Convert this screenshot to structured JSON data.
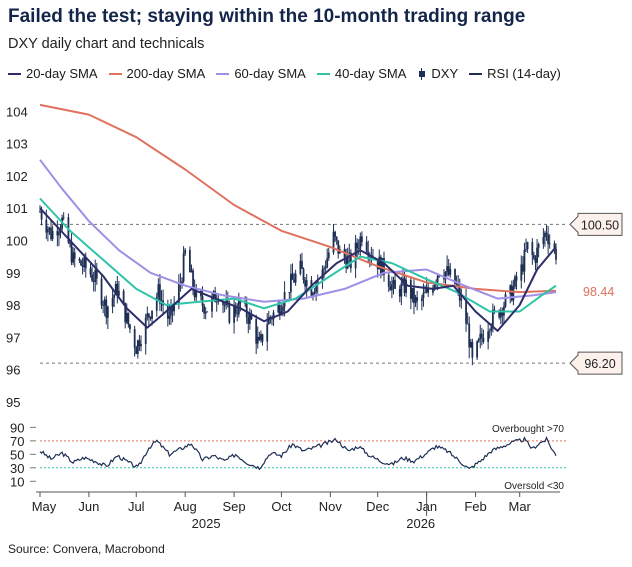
{
  "title": "Failed the test; staying within the 10-month trading range",
  "subtitle": "DXY daily chart and technicals",
  "source": "Source: Convera, Macrobond",
  "colors": {
    "sma20": "#2d2d6b",
    "sma200": "#e0715e",
    "sma60": "#9f8fe6",
    "sma40": "#2fc4a8",
    "dxy": "#1e2f55",
    "rsi": "#1e2f55",
    "overbought": "#e0715e",
    "oversold": "#2fc4a8"
  },
  "legend": [
    {
      "label": "20-day SMA",
      "key": "sma20",
      "kind": "line"
    },
    {
      "label": "200-day SMA",
      "key": "sma200",
      "kind": "line"
    },
    {
      "label": "60-day SMA",
      "key": "sma60",
      "kind": "line"
    },
    {
      "label": "40-day SMA",
      "key": "sma40",
      "kind": "line"
    },
    {
      "label": "DXY",
      "key": "dxy",
      "kind": "candle"
    },
    {
      "label": "RSI (14-day)",
      "key": "rsi",
      "kind": "line"
    }
  ],
  "chart_data": {
    "type": "line",
    "x_labels": [
      "May",
      "Jun",
      "Jul",
      "Aug",
      "Sep",
      "Oct",
      "Nov",
      "Dec",
      "Jan",
      "Feb",
      "Mar"
    ],
    "year_labels": [
      "2025",
      "2026"
    ],
    "x_range": [
      "2025-05-01",
      "2026-03-24"
    ],
    "price_panel": {
      "ylim": [
        94.5,
        104.6
      ],
      "yticks": [
        95,
        96,
        97,
        98,
        99,
        100,
        101,
        102,
        103,
        104
      ],
      "dxy_close": [
        {
          "x": "2025-05-01",
          "y": 100.9
        },
        {
          "x": "2025-05-08",
          "y": 100.2
        },
        {
          "x": "2025-05-15",
          "y": 100.6
        },
        {
          "x": "2025-05-22",
          "y": 99.4
        },
        {
          "x": "2025-05-29",
          "y": 99.2
        },
        {
          "x": "2025-06-05",
          "y": 98.8
        },
        {
          "x": "2025-06-12",
          "y": 97.9
        },
        {
          "x": "2025-06-19",
          "y": 98.5
        },
        {
          "x": "2025-06-26",
          "y": 97.4
        },
        {
          "x": "2025-07-01",
          "y": 96.7
        },
        {
          "x": "2025-07-08",
          "y": 97.6
        },
        {
          "x": "2025-07-15",
          "y": 98.4
        },
        {
          "x": "2025-07-22",
          "y": 97.5
        },
        {
          "x": "2025-07-29",
          "y": 98.7
        },
        {
          "x": "2025-08-01",
          "y": 99.6
        },
        {
          "x": "2025-08-08",
          "y": 98.2
        },
        {
          "x": "2025-08-15",
          "y": 97.9
        },
        {
          "x": "2025-08-22",
          "y": 98.4
        },
        {
          "x": "2025-08-29",
          "y": 97.7
        },
        {
          "x": "2025-09-05",
          "y": 98.0
        },
        {
          "x": "2025-09-12",
          "y": 97.5
        },
        {
          "x": "2025-09-17",
          "y": 96.7
        },
        {
          "x": "2025-09-22",
          "y": 97.5
        },
        {
          "x": "2025-09-29",
          "y": 97.9
        },
        {
          "x": "2025-10-06",
          "y": 98.6
        },
        {
          "x": "2025-10-13",
          "y": 99.1
        },
        {
          "x": "2025-10-20",
          "y": 98.5
        },
        {
          "x": "2025-10-27",
          "y": 99.0
        },
        {
          "x": "2025-11-03",
          "y": 100.1
        },
        {
          "x": "2025-11-07",
          "y": 99.6
        },
        {
          "x": "2025-11-14",
          "y": 99.3
        },
        {
          "x": "2025-11-21",
          "y": 100.2
        },
        {
          "x": "2025-11-28",
          "y": 99.5
        },
        {
          "x": "2025-12-05",
          "y": 99.1
        },
        {
          "x": "2025-12-12",
          "y": 98.4
        },
        {
          "x": "2025-12-19",
          "y": 98.6
        },
        {
          "x": "2025-12-26",
          "y": 98.0
        },
        {
          "x": "2026-01-02",
          "y": 98.4
        },
        {
          "x": "2026-01-09",
          "y": 99.1
        },
        {
          "x": "2026-01-14",
          "y": 99.0
        },
        {
          "x": "2026-01-20",
          "y": 98.6
        },
        {
          "x": "2026-01-27",
          "y": 97.3
        },
        {
          "x": "2026-01-30",
          "y": 96.2
        },
        {
          "x": "2026-02-04",
          "y": 96.9
        },
        {
          "x": "2026-02-10",
          "y": 97.5
        },
        {
          "x": "2026-02-17",
          "y": 97.9
        },
        {
          "x": "2026-02-24",
          "y": 98.4
        },
        {
          "x": "2026-03-02",
          "y": 99.1
        },
        {
          "x": "2026-03-06",
          "y": 99.8
        },
        {
          "x": "2026-03-10",
          "y": 99.4
        },
        {
          "x": "2026-03-14",
          "y": 99.9
        },
        {
          "x": "2026-03-18",
          "y": 100.3
        },
        {
          "x": "2026-03-21",
          "y": 99.8
        },
        {
          "x": "2026-03-24",
          "y": 99.6
        }
      ],
      "sma20": [
        {
          "x": "2025-05-01",
          "y": 101.0
        },
        {
          "x": "2025-05-20",
          "y": 100.0
        },
        {
          "x": "2025-06-10",
          "y": 98.9
        },
        {
          "x": "2025-06-25",
          "y": 97.9
        },
        {
          "x": "2025-07-08",
          "y": 97.3
        },
        {
          "x": "2025-07-20",
          "y": 97.8
        },
        {
          "x": "2025-08-05",
          "y": 98.5
        },
        {
          "x": "2025-08-20",
          "y": 98.2
        },
        {
          "x": "2025-09-05",
          "y": 97.9
        },
        {
          "x": "2025-09-20",
          "y": 97.5
        },
        {
          "x": "2025-10-05",
          "y": 97.8
        },
        {
          "x": "2025-10-20",
          "y": 98.6
        },
        {
          "x": "2025-11-05",
          "y": 99.3
        },
        {
          "x": "2025-11-20",
          "y": 99.7
        },
        {
          "x": "2025-12-05",
          "y": 99.3
        },
        {
          "x": "2025-12-20",
          "y": 98.6
        },
        {
          "x": "2026-01-05",
          "y": 98.5
        },
        {
          "x": "2026-01-18",
          "y": 98.6
        },
        {
          "x": "2026-02-01",
          "y": 97.8
        },
        {
          "x": "2026-02-15",
          "y": 97.2
        },
        {
          "x": "2026-03-01",
          "y": 98.0
        },
        {
          "x": "2026-03-12",
          "y": 99.1
        },
        {
          "x": "2026-03-24",
          "y": 99.8
        }
      ],
      "sma40": [
        {
          "x": "2025-05-01",
          "y": 101.3
        },
        {
          "x": "2025-05-20",
          "y": 100.3
        },
        {
          "x": "2025-06-10",
          "y": 99.4
        },
        {
          "x": "2025-07-01",
          "y": 98.5
        },
        {
          "x": "2025-07-20",
          "y": 98.0
        },
        {
          "x": "2025-08-10",
          "y": 98.1
        },
        {
          "x": "2025-09-01",
          "y": 98.2
        },
        {
          "x": "2025-09-20",
          "y": 97.9
        },
        {
          "x": "2025-10-10",
          "y": 98.2
        },
        {
          "x": "2025-11-01",
          "y": 98.9
        },
        {
          "x": "2025-11-20",
          "y": 99.5
        },
        {
          "x": "2025-12-10",
          "y": 99.3
        },
        {
          "x": "2026-01-01",
          "y": 98.8
        },
        {
          "x": "2026-01-20",
          "y": 98.4
        },
        {
          "x": "2026-02-10",
          "y": 97.8
        },
        {
          "x": "2026-03-01",
          "y": 97.8
        },
        {
          "x": "2026-03-15",
          "y": 98.3
        },
        {
          "x": "2026-03-24",
          "y": 98.6
        }
      ],
      "sma60": [
        {
          "x": "2025-05-01",
          "y": 102.5
        },
        {
          "x": "2025-05-15",
          "y": 101.6
        },
        {
          "x": "2025-06-01",
          "y": 100.6
        },
        {
          "x": "2025-06-20",
          "y": 99.7
        },
        {
          "x": "2025-07-10",
          "y": 99.0
        },
        {
          "x": "2025-08-01",
          "y": 98.6
        },
        {
          "x": "2025-08-25",
          "y": 98.3
        },
        {
          "x": "2025-09-20",
          "y": 98.1
        },
        {
          "x": "2025-10-15",
          "y": 98.2
        },
        {
          "x": "2025-11-10",
          "y": 98.5
        },
        {
          "x": "2025-12-05",
          "y": 99.0
        },
        {
          "x": "2026-01-01",
          "y": 99.1
        },
        {
          "x": "2026-01-25",
          "y": 98.6
        },
        {
          "x": "2026-02-15",
          "y": 98.2
        },
        {
          "x": "2026-03-10",
          "y": 98.3
        },
        {
          "x": "2026-03-24",
          "y": 98.4
        }
      ],
      "sma200": [
        {
          "x": "2025-05-01",
          "y": 104.2
        },
        {
          "x": "2025-06-01",
          "y": 103.9
        },
        {
          "x": "2025-07-01",
          "y": 103.2
        },
        {
          "x": "2025-08-01",
          "y": 102.2
        },
        {
          "x": "2025-09-01",
          "y": 101.1
        },
        {
          "x": "2025-10-01",
          "y": 100.3
        },
        {
          "x": "2025-11-01",
          "y": 99.8
        },
        {
          "x": "2025-12-01",
          "y": 99.2
        },
        {
          "x": "2026-01-01",
          "y": 98.7
        },
        {
          "x": "2026-02-01",
          "y": 98.5
        },
        {
          "x": "2026-03-01",
          "y": 98.4
        },
        {
          "x": "2026-03-24",
          "y": 98.44
        }
      ],
      "levels": [
        {
          "label": "100.50",
          "value": 100.5
        },
        {
          "label": "96.20",
          "value": 96.2
        }
      ],
      "last_value_label": {
        "label": "98.44",
        "value": 98.44
      }
    },
    "rsi_panel": {
      "ylim": [
        0,
        95
      ],
      "yticks": [
        10,
        30,
        50,
        70,
        90
      ],
      "overbought": {
        "label": "Overbought >70",
        "value": 70
      },
      "oversold": {
        "label": "Oversold <30",
        "value": 30
      },
      "rsi": [
        {
          "x": "2025-05-01",
          "y": 55
        },
        {
          "x": "2025-05-08",
          "y": 43
        },
        {
          "x": "2025-05-15",
          "y": 52
        },
        {
          "x": "2025-05-22",
          "y": 38
        },
        {
          "x": "2025-05-29",
          "y": 45
        },
        {
          "x": "2025-06-05",
          "y": 40
        },
        {
          "x": "2025-06-12",
          "y": 32
        },
        {
          "x": "2025-06-19",
          "y": 48
        },
        {
          "x": "2025-06-26",
          "y": 38
        },
        {
          "x": "2025-07-02",
          "y": 30
        },
        {
          "x": "2025-07-09",
          "y": 60
        },
        {
          "x": "2025-07-14",
          "y": 70
        },
        {
          "x": "2025-07-22",
          "y": 50
        },
        {
          "x": "2025-07-29",
          "y": 58
        },
        {
          "x": "2025-08-05",
          "y": 66
        },
        {
          "x": "2025-08-12",
          "y": 42
        },
        {
          "x": "2025-08-19",
          "y": 48
        },
        {
          "x": "2025-08-26",
          "y": 40
        },
        {
          "x": "2025-09-02",
          "y": 50
        },
        {
          "x": "2025-09-09",
          "y": 38
        },
        {
          "x": "2025-09-17",
          "y": 30
        },
        {
          "x": "2025-09-24",
          "y": 52
        },
        {
          "x": "2025-10-01",
          "y": 48
        },
        {
          "x": "2025-10-08",
          "y": 65
        },
        {
          "x": "2025-10-15",
          "y": 55
        },
        {
          "x": "2025-10-22",
          "y": 60
        },
        {
          "x": "2025-10-29",
          "y": 66
        },
        {
          "x": "2025-11-05",
          "y": 72
        },
        {
          "x": "2025-11-12",
          "y": 55
        },
        {
          "x": "2025-11-19",
          "y": 62
        },
        {
          "x": "2025-11-26",
          "y": 48
        },
        {
          "x": "2025-12-03",
          "y": 40
        },
        {
          "x": "2025-12-10",
          "y": 35
        },
        {
          "x": "2025-12-17",
          "y": 45
        },
        {
          "x": "2025-12-24",
          "y": 40
        },
        {
          "x": "2025-12-31",
          "y": 50
        },
        {
          "x": "2026-01-07",
          "y": 62
        },
        {
          "x": "2026-01-14",
          "y": 55
        },
        {
          "x": "2026-01-21",
          "y": 42
        },
        {
          "x": "2026-01-28",
          "y": 28
        },
        {
          "x": "2026-02-04",
          "y": 40
        },
        {
          "x": "2026-02-11",
          "y": 55
        },
        {
          "x": "2026-02-18",
          "y": 62
        },
        {
          "x": "2026-02-25",
          "y": 68
        },
        {
          "x": "2026-03-04",
          "y": 72
        },
        {
          "x": "2026-03-09",
          "y": 58
        },
        {
          "x": "2026-03-13",
          "y": 66
        },
        {
          "x": "2026-03-18",
          "y": 72
        },
        {
          "x": "2026-03-21",
          "y": 60
        },
        {
          "x": "2026-03-24",
          "y": 48
        }
      ]
    }
  }
}
